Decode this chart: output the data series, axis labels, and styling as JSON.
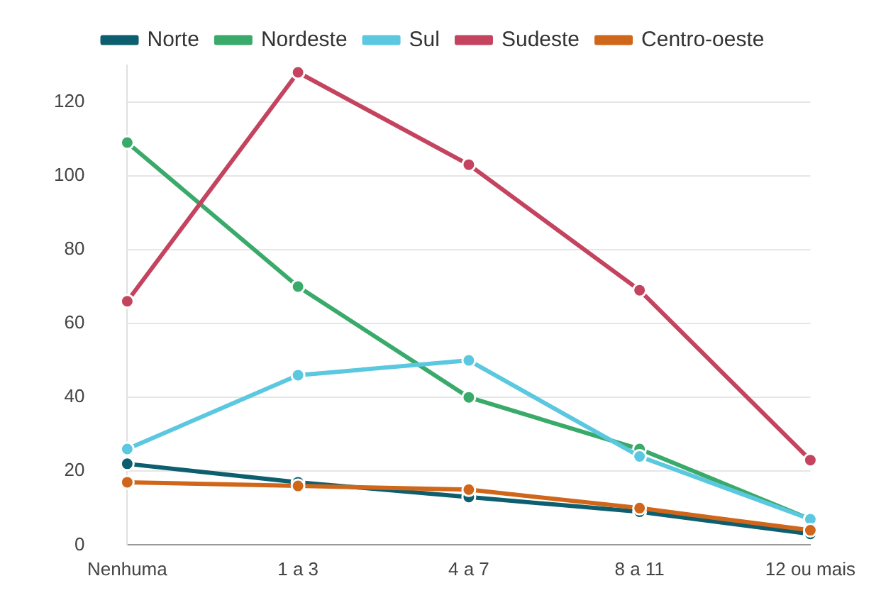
{
  "chart_data": {
    "type": "line",
    "categories": [
      "Nenhuma",
      "1 a 3",
      "4 a 7",
      "8 a 11",
      "12 ou mais"
    ],
    "series": [
      {
        "name": "Norte",
        "color": "#0d5e6e",
        "values": [
          22,
          17,
          13,
          9,
          3
        ]
      },
      {
        "name": "Nordeste",
        "color": "#3aaa6a",
        "values": [
          109,
          70,
          40,
          26,
          7
        ]
      },
      {
        "name": "Sul",
        "color": "#5bc8e0",
        "values": [
          26,
          46,
          50,
          24,
          7
        ]
      },
      {
        "name": "Sudeste",
        "color": "#c4445f",
        "values": [
          66,
          128,
          103,
          69,
          23
        ]
      },
      {
        "name": "Centro-oeste",
        "color": "#d0661a",
        "values": [
          17,
          16,
          15,
          10,
          4
        ]
      }
    ],
    "ylim": [
      0,
      130
    ],
    "yticks": [
      0,
      20,
      40,
      60,
      80,
      100,
      120
    ],
    "grid": "y",
    "legend": "top",
    "marker": "circle",
    "line_style": "solid"
  }
}
